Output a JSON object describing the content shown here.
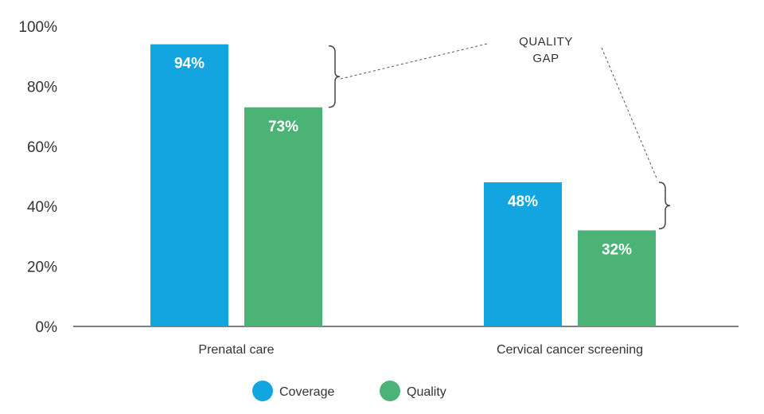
{
  "chart_data": {
    "type": "bar",
    "title": "",
    "xlabel": "",
    "ylabel": "",
    "ylim": [
      0,
      100
    ],
    "yticks": [
      0,
      20,
      40,
      60,
      80,
      100
    ],
    "ytick_labels": [
      "0%",
      "20%",
      "40%",
      "60%",
      "80%",
      "100%"
    ],
    "categories": [
      "Prenatal care",
      "Cervical cancer screening"
    ],
    "series": [
      {
        "name": "Coverage",
        "color": "#12a5df",
        "values": [
          94,
          48
        ],
        "labels": [
          "94%",
          "48%"
        ]
      },
      {
        "name": "Quality",
        "color": "#4cb377",
        "values": [
          73,
          32
        ],
        "labels": [
          "73%",
          "32%"
        ]
      }
    ],
    "legend": {
      "position": "bottom-center"
    },
    "grid": false,
    "annotation": {
      "line1": "QUALITY",
      "line2": "GAP"
    }
  }
}
